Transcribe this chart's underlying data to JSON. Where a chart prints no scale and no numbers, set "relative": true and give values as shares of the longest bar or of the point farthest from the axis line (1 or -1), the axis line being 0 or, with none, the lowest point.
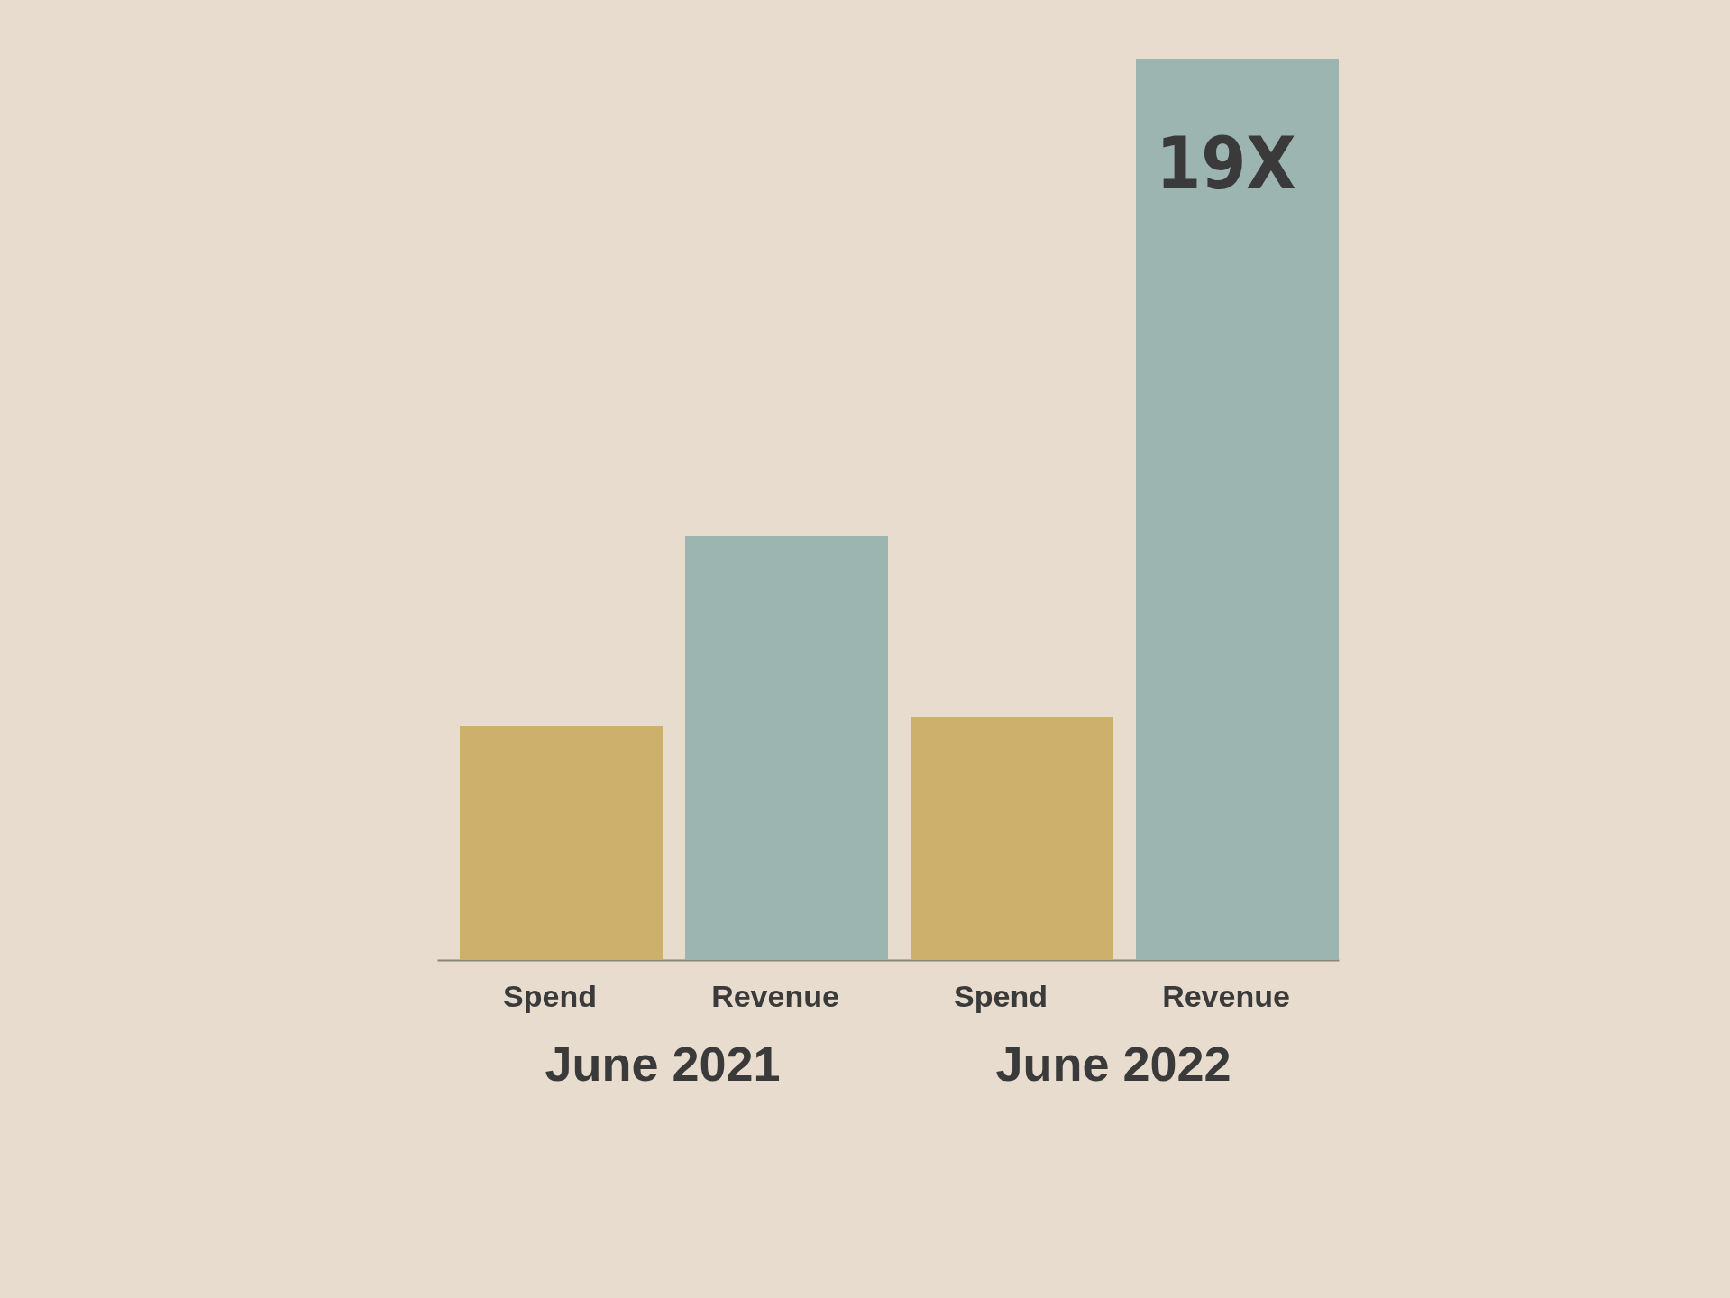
{
  "chart_data": {
    "type": "bar",
    "relative": true,
    "categories": [
      "June 2021",
      "June 2022"
    ],
    "series": [
      {
        "name": "Spend",
        "color": "#cdb06b",
        "values": [
          0.26,
          0.27
        ]
      },
      {
        "name": "Revenue",
        "color": "#9db5b0",
        "values": [
          0.47,
          1
        ]
      }
    ],
    "annotations": [
      "19X"
    ],
    "legend": false
  }
}
